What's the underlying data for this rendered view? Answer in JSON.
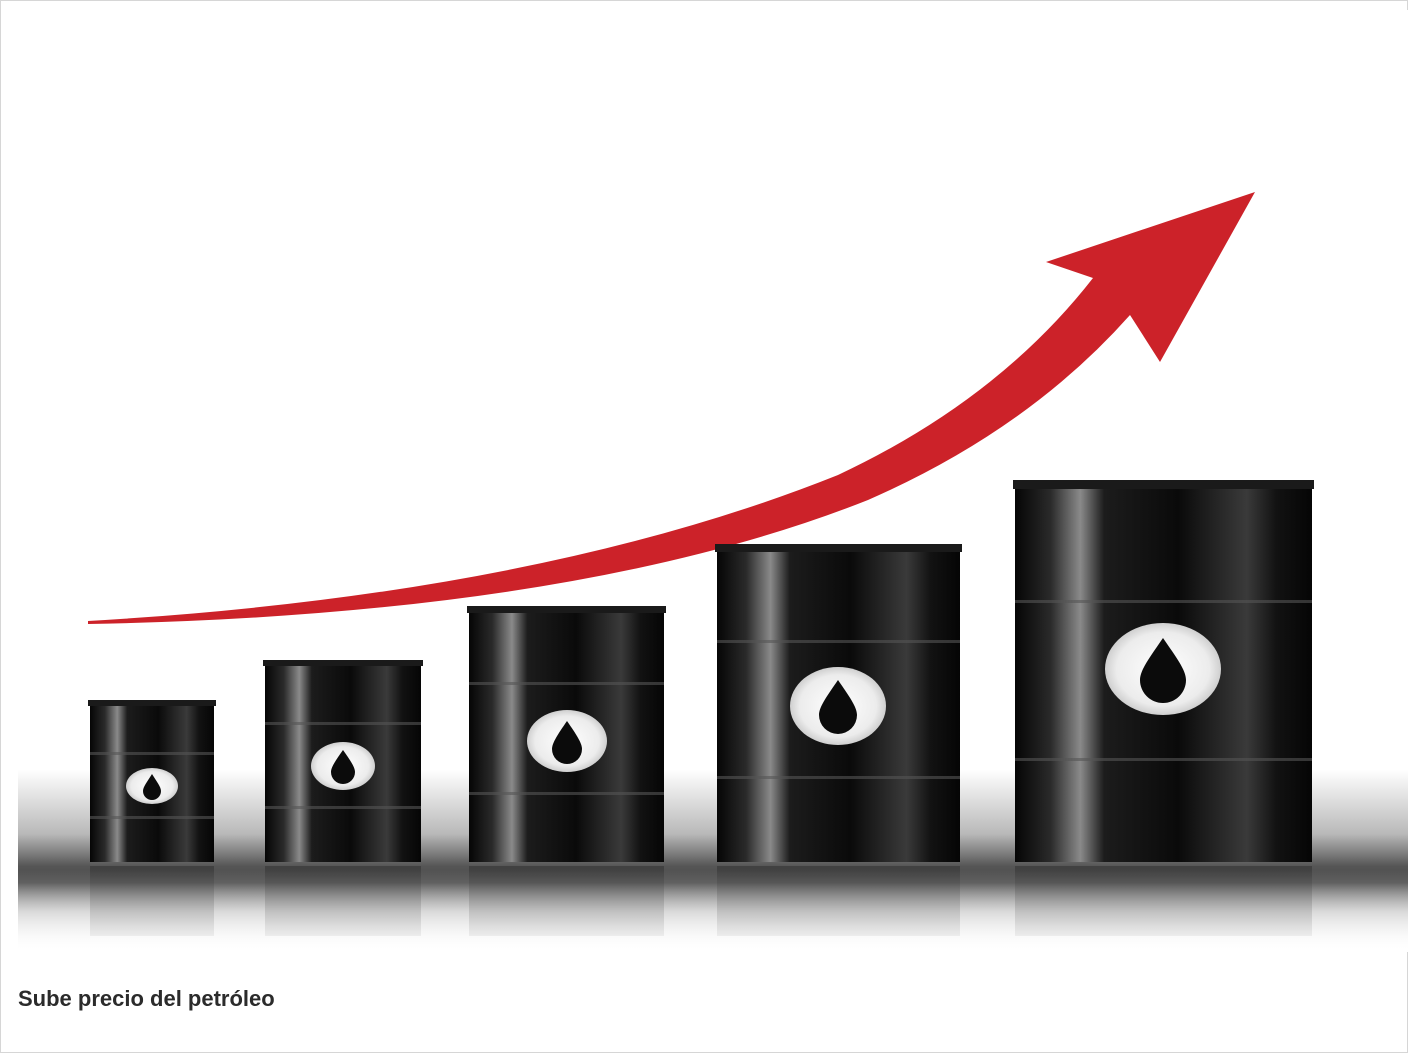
{
  "caption": {
    "text": "Sube precio del petróleo"
  },
  "image": {
    "icon": "oil-price-rising-illustration",
    "barrel_count": 5,
    "colors": {
      "arrow": "#cc2229",
      "barrel": "#0b0b0b",
      "label": "#f4f4f4",
      "background": "#ffffff"
    }
  }
}
